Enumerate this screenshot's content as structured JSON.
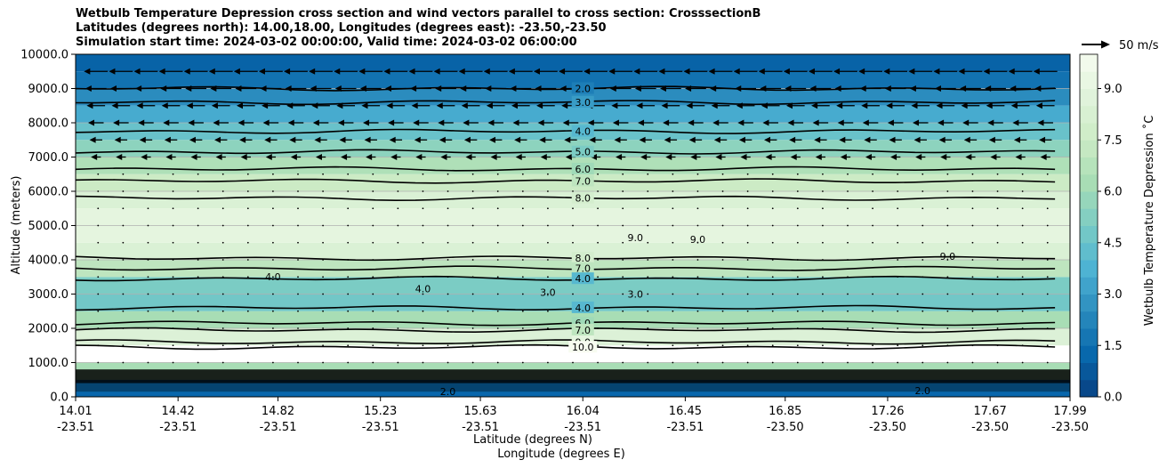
{
  "title_lines": [
    "Wetbulb Temperature Depression cross section and wind vectors parallel to cross section: CrosssectionB",
    "Latitudes (degrees north): 14.00,18.00, Longitudes (degrees east): -23.50,-23.50",
    "Simulation start time: 2024-03-02 00:00:00, Valid time: 2024-03-02 06:00:00"
  ],
  "chart_data": {
    "type": "contour",
    "title": "Wetbulb Temperature Depression cross section and wind vectors parallel to cross section: CrosssectionB",
    "xlabel_top": "Latitude (degrees N)",
    "xlabel_bottom": "Longitude (degrees E)",
    "ylabel": "Altitude (meters)",
    "ylim": [
      0,
      10000
    ],
    "y_ticks": [
      "0.0",
      "1000.0",
      "2000.0",
      "3000.0",
      "4000.0",
      "5000.0",
      "6000.0",
      "7000.0",
      "8000.0",
      "9000.0",
      "10000.0"
    ],
    "y_tick_values": [
      0,
      1000,
      2000,
      3000,
      4000,
      5000,
      6000,
      7000,
      8000,
      9000,
      10000
    ],
    "x_ticks_lat": [
      "14.01",
      "14.42",
      "14.82",
      "15.23",
      "15.63",
      "16.04",
      "16.45",
      "16.85",
      "17.26",
      "17.67",
      "17.99"
    ],
    "x_ticks_lon": [
      "-23.51",
      "-23.51",
      "-23.51",
      "-23.51",
      "-23.51",
      "-23.51",
      "-23.51",
      "-23.50",
      "-23.50",
      "-23.50",
      "-23.50"
    ],
    "x_tick_values": [
      14.01,
      14.42,
      14.82,
      15.23,
      15.63,
      16.04,
      16.45,
      16.85,
      17.26,
      17.67,
      17.99
    ],
    "xlim": [
      14.01,
      17.99
    ],
    "grid": "horizontal",
    "colorbar": {
      "label": "Wetbulb Temperature Depression ˚C",
      "ticks": [
        "0.0",
        "1.5",
        "3.0",
        "4.5",
        "6.0",
        "7.5",
        "9.0"
      ],
      "tick_values": [
        0,
        1.5,
        3.0,
        4.5,
        6.0,
        7.5,
        9.0
      ],
      "range": [
        0,
        10
      ],
      "colormap": "GnBu_r"
    },
    "contour_labels": [
      "2.0",
      "3.0",
      "4.0",
      "5.0",
      "6.0",
      "7.0",
      "8.0",
      "9.0",
      "10.0",
      "4.0",
      "3.0",
      "2.0"
    ],
    "quiver_key": "50 m/s",
    "profile": [
      {
        "alt": 0,
        "value": 1.0
      },
      {
        "alt": 500,
        "value": 1.5
      },
      {
        "alt": 1000,
        "value": 11.0
      },
      {
        "alt": 1500,
        "value": 10.0
      },
      {
        "alt": 2000,
        "value": 7.0
      },
      {
        "alt": 2500,
        "value": 5.5
      },
      {
        "alt": 3000,
        "value": 4.0
      },
      {
        "alt": 3500,
        "value": 6.0
      },
      {
        "alt": 4000,
        "value": 8.0
      },
      {
        "alt": 4500,
        "value": 8.8
      },
      {
        "alt": 5000,
        "value": 9.2
      },
      {
        "alt": 5500,
        "value": 8.8
      },
      {
        "alt": 6000,
        "value": 8.0
      },
      {
        "alt": 6500,
        "value": 7.0
      },
      {
        "alt": 7000,
        "value": 6.0
      },
      {
        "alt": 7500,
        "value": 5.0
      },
      {
        "alt": 8000,
        "value": 4.0
      },
      {
        "alt": 8500,
        "value": 3.0
      },
      {
        "alt": 9000,
        "value": 2.0
      },
      {
        "alt": 9500,
        "value": 1.2
      },
      {
        "alt": 10000,
        "value": 1.0
      }
    ],
    "contours": [
      {
        "level": "2.0",
        "alt": 9000,
        "label_lat": 16.04
      },
      {
        "level": "3.0",
        "alt": 8600,
        "label_lat": 16.04
      },
      {
        "level": "4.0",
        "alt": 7750,
        "label_lat": 16.04
      },
      {
        "level": "5.0",
        "alt": 7150,
        "label_lat": 16.04
      },
      {
        "level": "6.0",
        "alt": 6650,
        "label_lat": 16.04
      },
      {
        "level": "7.0",
        "alt": 6300,
        "label_lat": 16.04
      },
      {
        "level": "8.0",
        "alt": 5800,
        "label_lat": 16.04
      },
      {
        "level": "8.0",
        "alt": 4050,
        "label_lat": 16.04
      },
      {
        "level": "7.0",
        "alt": 3750,
        "label_lat": 16.04
      },
      {
        "level": "4.0",
        "alt": 3450,
        "label_lat": 16.04
      },
      {
        "level": "4.0",
        "alt": 2600,
        "label_lat": 16.04
      },
      {
        "level": "6.0",
        "alt": 2150,
        "label_lat": 16.04
      },
      {
        "level": "7.0",
        "alt": 1950,
        "label_lat": 16.04
      },
      {
        "level": "9.0",
        "alt": 1600,
        "label_lat": 16.04
      },
      {
        "level": "10.0",
        "alt": 1450,
        "label_lat": 16.04
      }
    ],
    "extra_labels": [
      {
        "text": "9.0",
        "lat": 16.25,
        "alt": 4550
      },
      {
        "text": "9.0",
        "lat": 16.5,
        "alt": 4500
      },
      {
        "text": "9.0",
        "lat": 17.5,
        "alt": 4000
      },
      {
        "text": "4.0",
        "lat": 14.8,
        "alt": 3400
      },
      {
        "text": "4.0",
        "lat": 15.4,
        "alt": 3050
      },
      {
        "text": "3.0",
        "lat": 15.9,
        "alt": 2950
      },
      {
        "text": "3.0",
        "lat": 16.25,
        "alt": 2900
      },
      {
        "text": "2.0",
        "lat": 15.5,
        "alt": 50
      },
      {
        "text": "2.0",
        "lat": 17.4,
        "alt": 80
      }
    ]
  }
}
